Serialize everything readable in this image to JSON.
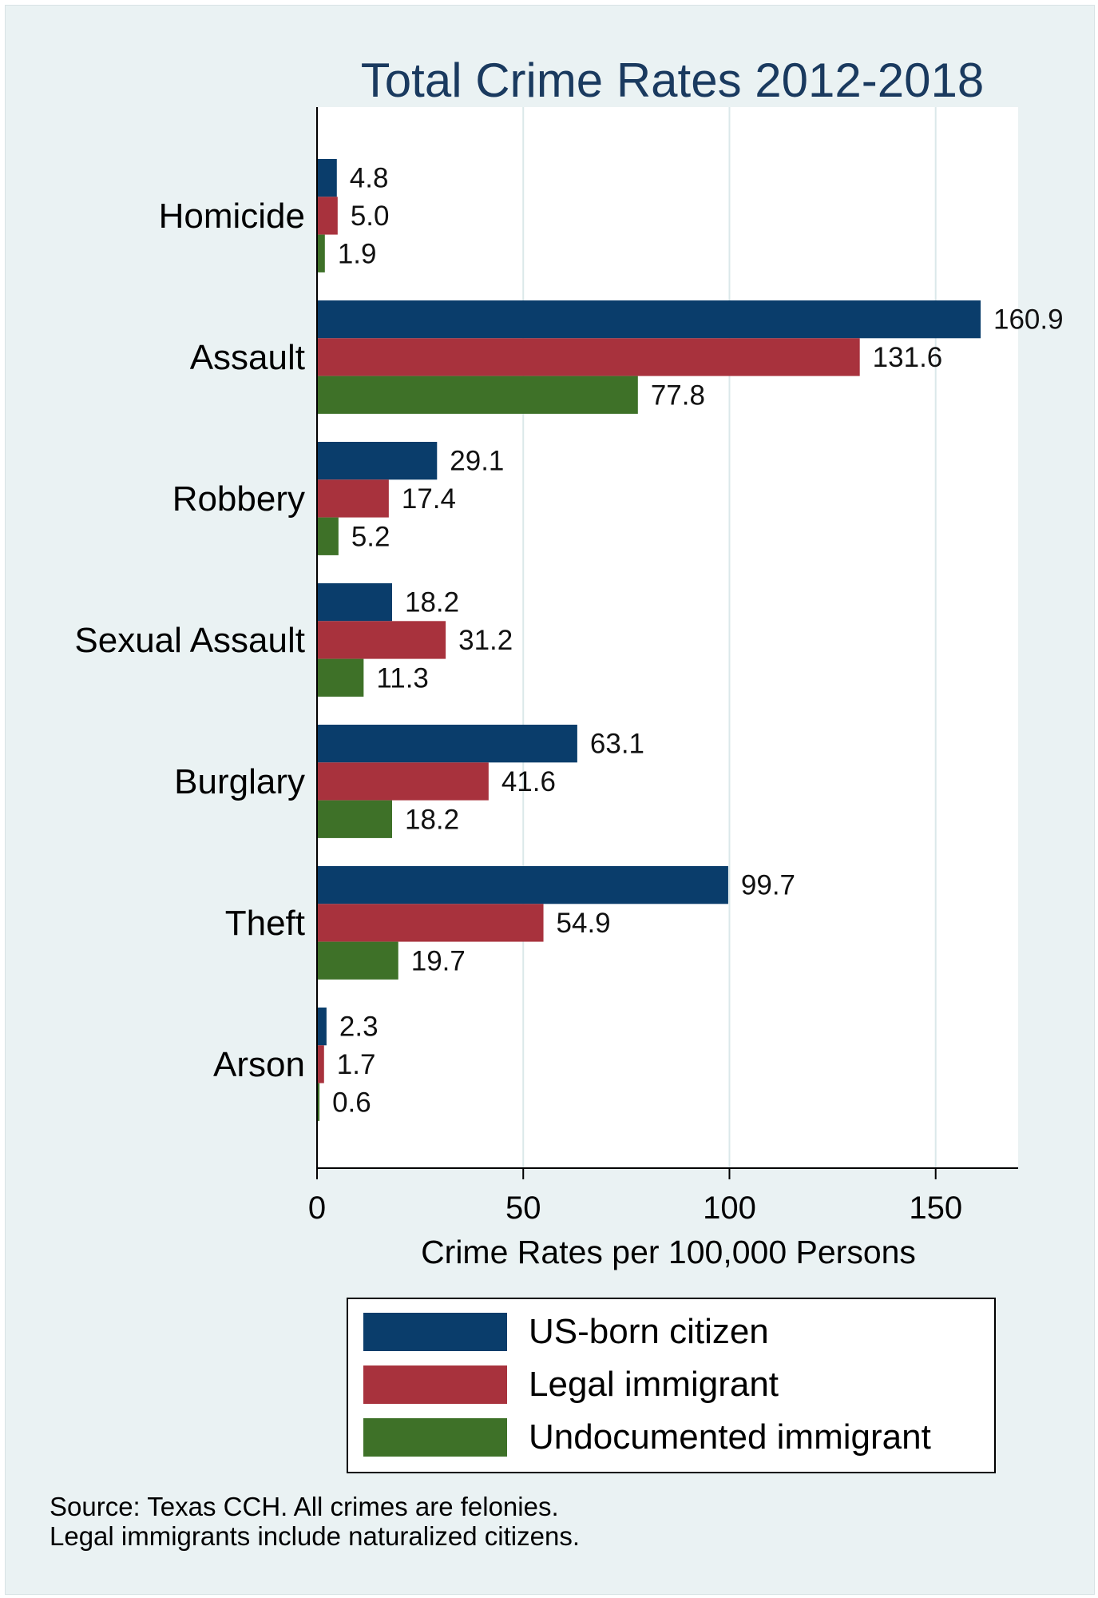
{
  "chart_data": {
    "type": "bar",
    "orientation": "horizontal",
    "title": "Total Crime Rates 2012-2018",
    "xlabel": "Crime Rates per 100,000 Persons",
    "ylabel": "",
    "categories": [
      "Homicide",
      "Assault",
      "Robbery",
      "Sexual Assault",
      "Burglary",
      "Theft",
      "Arson"
    ],
    "series": [
      {
        "name": "US-born citizen",
        "color": "#0a3d6b",
        "values": [
          4.8,
          160.9,
          29.1,
          18.2,
          63.1,
          99.7,
          2.3
        ],
        "labels": [
          "4.8",
          "160.9",
          "29.1",
          "18.2",
          "63.1",
          "99.7",
          "2.3"
        ]
      },
      {
        "name": "Legal immigrant",
        "color": "#a8323d",
        "values": [
          5.0,
          131.6,
          17.4,
          31.2,
          41.6,
          54.9,
          1.7
        ],
        "labels": [
          "5.0",
          "131.6",
          "17.4",
          "31.2",
          "41.6",
          "54.9",
          "1.7"
        ]
      },
      {
        "name": "Undocumented immigrant",
        "color": "#3e7128",
        "values": [
          1.9,
          77.8,
          5.2,
          11.3,
          18.2,
          19.7,
          0.6
        ],
        "labels": [
          "1.9",
          "77.8",
          "5.2",
          "11.3",
          "18.2",
          "19.7",
          "0.6"
        ]
      }
    ],
    "xlim": [
      0,
      170
    ],
    "xticks": [
      0,
      50,
      100,
      150
    ],
    "grid": true,
    "legend_position": "bottom"
  },
  "notes": [
    "Source: Texas CCH. All crimes are felonies.",
    "Legal immigrants include naturalized citizens."
  ]
}
